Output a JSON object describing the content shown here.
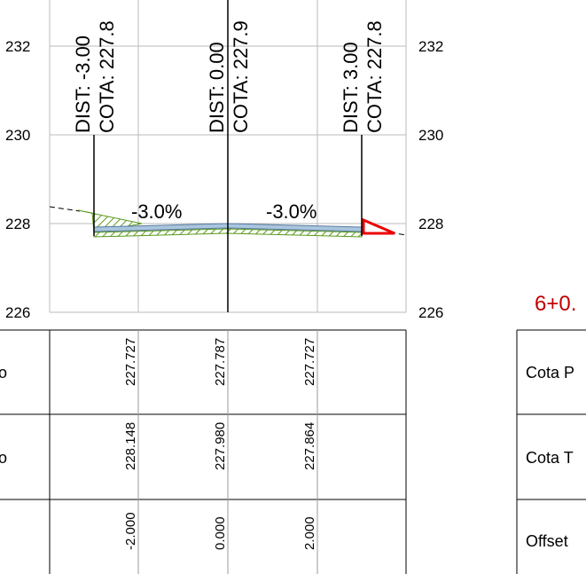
{
  "axis": {
    "left": [
      "232",
      "230",
      "228",
      "226"
    ],
    "right": [
      "232",
      "230",
      "228",
      "226"
    ]
  },
  "points": [
    {
      "dist": "DIST: -3.00",
      "cota": "COTA: 227.8"
    },
    {
      "dist": "DIST: 0.00",
      "cota": "COTA: 227.9"
    },
    {
      "dist": "DIST: 3.00",
      "cota": "COTA: 227.8"
    }
  ],
  "slopes": [
    "-3.0%",
    "-3.0%"
  ],
  "table": {
    "row_labels": [
      "o",
      "o"
    ],
    "rows": [
      [
        "227.727",
        "227.787",
        "227.727"
      ],
      [
        "228.148",
        "227.980",
        "227.864"
      ],
      [
        "-2.000",
        "0.000",
        "2.000"
      ]
    ]
  },
  "station": "6+0.",
  "legend_table": {
    "rows": [
      "Cota P",
      "Cota T",
      "Offset"
    ]
  }
}
